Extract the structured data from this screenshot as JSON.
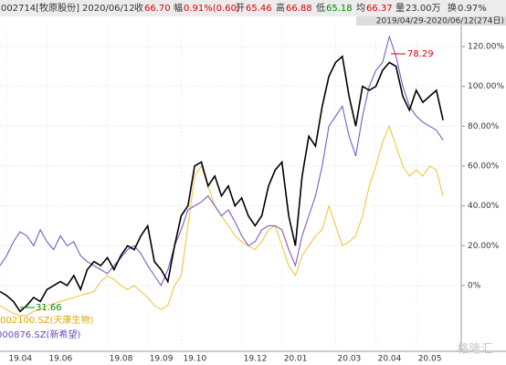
{
  "header": {
    "items": [
      "002714[牧原股份]",
      "2020/06/12",
      "收",
      "66.70",
      "幅",
      "0.91%(0.60)",
      "开",
      "65.46",
      "高",
      "66.88",
      "低",
      "65.18",
      "均",
      "66.37",
      "量",
      "23.00万",
      "换",
      "0.97%"
    ],
    "range": "2019/04/29-2020/06/12(274日)"
  },
  "chart_data": {
    "type": "line",
    "categories": [
      null,
      "19.04",
      null,
      null,
      null,
      null,
      null,
      "19.06",
      null,
      null,
      null,
      null,
      null,
      null,
      null,
      null,
      "19.08",
      null,
      null,
      null,
      null,
      null,
      "19.09",
      null,
      null,
      null,
      null,
      "19.10",
      null,
      null,
      null,
      null,
      null,
      null,
      null,
      null,
      "19.12",
      null,
      null,
      null,
      null,
      null,
      "20.01",
      null,
      null,
      null,
      null,
      null,
      null,
      null,
      "20.03",
      null,
      null,
      null,
      null,
      null,
      "20.04",
      null,
      null,
      null,
      null,
      null,
      "20.05",
      null,
      null,
      null,
      null
    ],
    "series": [
      {
        "name": "002714(牧原股份)",
        "color": "#000000",
        "values": [
          -3,
          -5,
          -8,
          -13,
          -10,
          -6,
          -8,
          -2,
          0,
          2,
          0,
          5,
          -2,
          8,
          12,
          10,
          14,
          8,
          15,
          20,
          18,
          25,
          30,
          12,
          8,
          2,
          20,
          35,
          40,
          60,
          62,
          50,
          55,
          45,
          50,
          40,
          44,
          35,
          30,
          35,
          50,
          58,
          62,
          35,
          20,
          55,
          75,
          70,
          90,
          105,
          112,
          115,
          95,
          80,
          100,
          98,
          100,
          108,
          112,
          110,
          95,
          88,
          98,
          92,
          95,
          98,
          83
        ]
      },
      {
        "name": "000876.SZ(新希望)",
        "color": "#7b5cc4",
        "values": [
          10,
          15,
          22,
          27,
          25,
          20,
          28,
          22,
          18,
          25,
          20,
          22,
          15,
          12,
          10,
          8,
          6,
          10,
          14,
          18,
          20,
          16,
          10,
          5,
          0,
          8,
          20,
          28,
          38,
          40,
          42,
          45,
          40,
          35,
          38,
          32,
          25,
          20,
          22,
          28,
          30,
          30,
          28,
          18,
          10,
          25,
          35,
          45,
          60,
          80,
          85,
          90,
          75,
          65,
          85,
          100,
          108,
          112,
          125,
          115,
          100,
          90,
          85,
          82,
          80,
          78,
          73
        ]
      },
      {
        "name": "002100.SZ(天康生物)",
        "color": "#f2c640",
        "values": [
          -10,
          -12,
          -14,
          -15,
          -15,
          -13,
          -12,
          -10,
          -9,
          -8,
          -7,
          -6,
          -5,
          -4,
          -3,
          2,
          5,
          3,
          0,
          -2,
          0,
          -3,
          -6,
          -10,
          -12,
          -10,
          0,
          5,
          30,
          55,
          60,
          50,
          40,
          35,
          30,
          25,
          22,
          20,
          18,
          22,
          28,
          30,
          20,
          10,
          5,
          15,
          20,
          25,
          28,
          40,
          30,
          20,
          22,
          25,
          35,
          50,
          60,
          72,
          80,
          70,
          60,
          55,
          58,
          55,
          60,
          58,
          45
        ]
      }
    ],
    "ylim": [
      -33,
      130.5
    ],
    "yticks": [
      {
        "value": 0,
        "label": "0%"
      },
      {
        "value": 20,
        "label": "20.00%"
      },
      {
        "value": 40,
        "label": "40.00%"
      },
      {
        "value": 60,
        "label": "60.00%"
      },
      {
        "value": 80,
        "label": "80.00%"
      },
      {
        "value": 100,
        "label": "100.00%"
      },
      {
        "value": 120,
        "label": "120.00%"
      }
    ],
    "grid": true,
    "annotations": [
      {
        "text": "31.66"
      },
      {
        "text": "78.29"
      }
    ],
    "watermark": "格隆汇"
  }
}
